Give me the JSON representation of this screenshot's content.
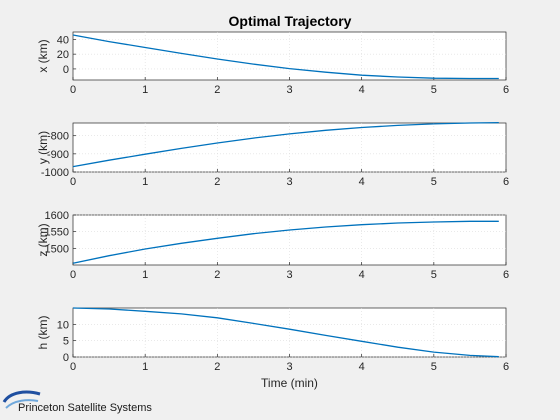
{
  "figure": {
    "title": "Optimal Trajectory",
    "brand": "Princeton Satellite Systems",
    "colors": {
      "background": "#f0f0f0",
      "line": "#0072bd",
      "axes_bg": "#ffffff"
    }
  },
  "chart_data": [
    {
      "type": "line",
      "title": "Optimal Trajectory",
      "xlabel": "",
      "ylabel": "x (km)",
      "xlim": [
        0,
        6
      ],
      "ylim": [
        -15,
        50
      ],
      "xticks": [
        0,
        1,
        2,
        3,
        4,
        5,
        6
      ],
      "yticks": [
        0,
        20,
        40
      ],
      "grid": true,
      "series": [
        {
          "x": [
            0,
            0.5,
            1,
            1.5,
            2,
            2.5,
            3,
            3.5,
            4,
            4.5,
            5,
            5.5,
            5.9
          ],
          "y": [
            46,
            37,
            29,
            21,
            13.5,
            6.5,
            0.5,
            -4.5,
            -8.5,
            -11,
            -12.5,
            -13,
            -13
          ]
        }
      ]
    },
    {
      "type": "line",
      "xlabel": "",
      "ylabel": "y (km)",
      "xlim": [
        0,
        6
      ],
      "ylim": [
        -1000,
        -730
      ],
      "xticks": [
        0,
        1,
        2,
        3,
        4,
        5,
        6
      ],
      "yticks": [
        -1000,
        -900,
        -800
      ],
      "grid": true,
      "series": [
        {
          "x": [
            0,
            0.5,
            1,
            1.5,
            2,
            2.5,
            3,
            3.5,
            4,
            4.5,
            5,
            5.5,
            5.9
          ],
          "y": [
            -970,
            -935,
            -902,
            -870,
            -840,
            -813,
            -790,
            -770,
            -755,
            -743,
            -735,
            -730,
            -728
          ]
        }
      ]
    },
    {
      "type": "line",
      "xlabel": "",
      "ylabel": "z (km)",
      "xlim": [
        0,
        6
      ],
      "ylim": [
        1450,
        1600
      ],
      "xticks": [
        0,
        1,
        2,
        3,
        4,
        5,
        6
      ],
      "yticks": [
        1500,
        1550,
        1600
      ],
      "grid": true,
      "series": [
        {
          "x": [
            0,
            0.5,
            1,
            1.5,
            2,
            2.5,
            3,
            3.5,
            4,
            4.5,
            5,
            5.5,
            5.9
          ],
          "y": [
            1455,
            1478,
            1498,
            1515,
            1530,
            1544,
            1555,
            1564,
            1571,
            1576,
            1579,
            1581,
            1581
          ]
        }
      ]
    },
    {
      "type": "line",
      "xlabel": "Time (min)",
      "ylabel": "h (km)",
      "xlim": [
        0,
        6
      ],
      "ylim": [
        0,
        15
      ],
      "xticks": [
        0,
        1,
        2,
        3,
        4,
        5,
        6
      ],
      "yticks": [
        0,
        5,
        10
      ],
      "grid": true,
      "series": [
        {
          "x": [
            0,
            0.5,
            1,
            1.5,
            2,
            2.5,
            3,
            3.5,
            4,
            4.5,
            5,
            5.5,
            5.9
          ],
          "y": [
            15,
            14.7,
            14,
            13.2,
            12,
            10.3,
            8.5,
            6.6,
            4.8,
            3,
            1.5,
            0.5,
            0.1
          ]
        }
      ]
    }
  ]
}
